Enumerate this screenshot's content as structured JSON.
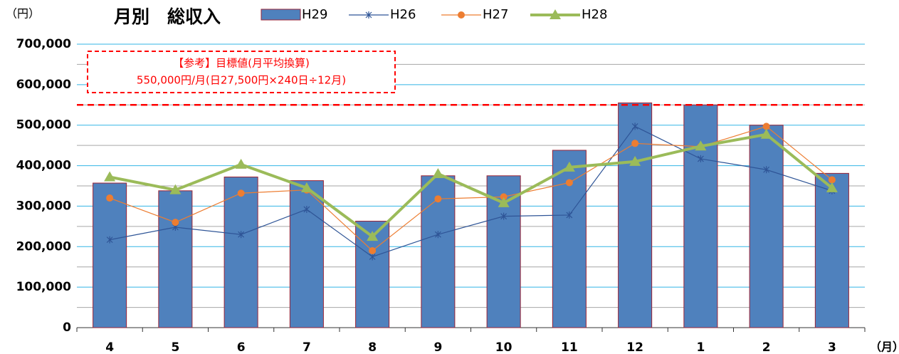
{
  "chart_data": {
    "type": "bar_line",
    "title": "月別　総収入",
    "y_unit": "（円）",
    "x_unit": "（月）",
    "categories": [
      "4",
      "5",
      "6",
      "7",
      "8",
      "9",
      "10",
      "11",
      "12",
      "1",
      "2",
      "3"
    ],
    "series": [
      {
        "name": "H29",
        "type": "bar",
        "color": "#4f81bd",
        "border": "#9b2335",
        "values": [
          357000,
          338000,
          372000,
          363000,
          263000,
          375000,
          375000,
          438000,
          555000,
          550000,
          500000,
          381000
        ]
      },
      {
        "name": "H26",
        "type": "line",
        "marker": "star",
        "color": "#2f5597",
        "values": [
          217000,
          248000,
          230000,
          292000,
          175000,
          230000,
          275000,
          278000,
          497000,
          417000,
          390000,
          338000
        ]
      },
      {
        "name": "H27",
        "type": "line",
        "marker": "circle",
        "color": "#ed7d31",
        "values": [
          320000,
          260000,
          332000,
          340000,
          190000,
          318000,
          323000,
          358000,
          455000,
          447000,
          497000,
          365000
        ]
      },
      {
        "name": "H28",
        "type": "line",
        "marker": "triangle",
        "color": "#9bbb59",
        "values": [
          372000,
          340000,
          403000,
          345000,
          225000,
          380000,
          308000,
          396000,
          410000,
          448000,
          477000,
          345000
        ]
      }
    ],
    "ylim": [
      0,
      700000
    ],
    "yticks": [
      {
        "value": 0,
        "label": "0"
      },
      {
        "value": 100000,
        "label": "100,000"
      },
      {
        "value": 200000,
        "label": "200,000"
      },
      {
        "value": 300000,
        "label": "300,000"
      },
      {
        "value": 400000,
        "label": "400,000"
      },
      {
        "value": 500000,
        "label": "500,000"
      },
      {
        "value": 600000,
        "label": "600,000"
      },
      {
        "value": 700000,
        "label": "700,000"
      }
    ],
    "yminorticks": [
      50000,
      150000,
      250000,
      350000,
      450000,
      550000,
      650000
    ],
    "grid": true,
    "reference": {
      "value": 550000,
      "color": "#ff0000",
      "annotation": [
        "【参考】目標値(月平均換算)",
        "550,000円/月(日27,500円×240日÷12月)"
      ]
    }
  }
}
